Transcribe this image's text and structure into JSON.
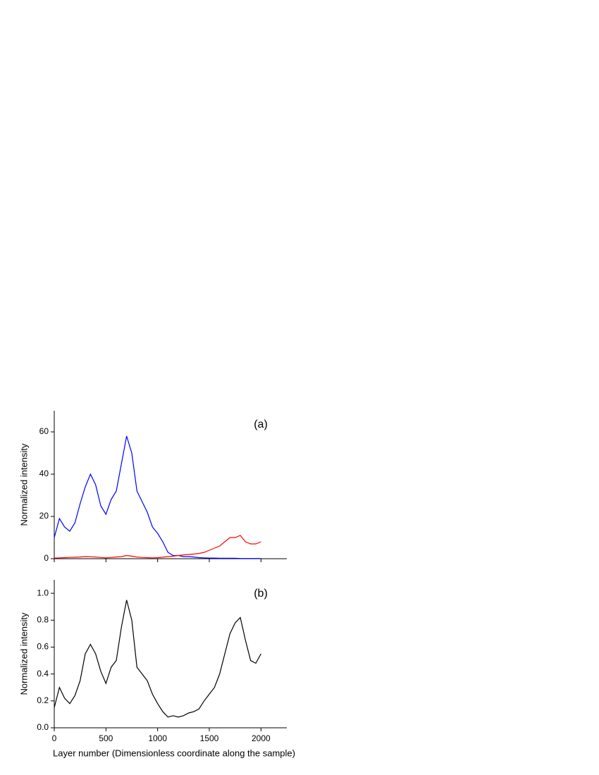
{
  "chart_data": [
    {
      "type": "line",
      "annotation": "(a)",
      "y_label": "Normalized intensity",
      "x": [
        0,
        50,
        100,
        150,
        200,
        250,
        300,
        350,
        400,
        450,
        500,
        550,
        600,
        650,
        700,
        750,
        800,
        850,
        900,
        950,
        1000,
        1050,
        1100,
        1150,
        1200,
        1250,
        1300,
        1350,
        1400,
        1450,
        1500,
        1550,
        1600,
        1650,
        1700,
        1750,
        1800,
        1850,
        1900,
        1950,
        2000
      ],
      "series": [
        {
          "color": "#0000ff",
          "values": [
            10,
            19,
            15,
            13,
            17,
            26,
            34,
            40,
            35,
            25,
            21,
            28,
            32,
            45,
            58,
            50,
            32,
            27,
            22,
            15,
            12,
            8,
            3,
            1.5,
            1.5,
            1,
            1,
            0.8,
            0.5,
            0.4,
            0.3,
            0.3,
            0.2,
            0.2,
            0.2,
            0.2,
            0.1,
            0.1,
            0.1,
            0.1,
            0.1
          ]
        },
        {
          "color": "#ff0000",
          "values": [
            0.3,
            0.4,
            0.5,
            0.6,
            0.7,
            0.8,
            1,
            0.9,
            0.8,
            0.6,
            0.4,
            0.6,
            0.8,
            1,
            1.5,
            1.2,
            0.8,
            0.6,
            0.5,
            0.4,
            0.5,
            0.7,
            1,
            1.2,
            1.5,
            1.8,
            2,
            2.2,
            2.5,
            3,
            4,
            5,
            6,
            8,
            10,
            10,
            11,
            8,
            7,
            7,
            8
          ]
        }
      ],
      "xlim": [
        0,
        2250
      ],
      "xticks": [
        0,
        500,
        1000,
        1500,
        2000
      ],
      "xtick_labels": false,
      "ylim": [
        0,
        70
      ],
      "yticks": [
        0,
        20,
        40,
        60
      ]
    },
    {
      "type": "line",
      "annotation": "(b)",
      "y_label": "Normalized intensity",
      "x_label": "Layer number (Dimensionless coordinate along the sample)",
      "x": [
        0,
        50,
        100,
        150,
        200,
        250,
        300,
        350,
        400,
        450,
        500,
        550,
        600,
        650,
        700,
        750,
        800,
        850,
        900,
        950,
        1000,
        1050,
        1100,
        1150,
        1200,
        1250,
        1300,
        1350,
        1400,
        1450,
        1500,
        1550,
        1600,
        1650,
        1700,
        1750,
        1800,
        1850,
        1900,
        1950,
        2000
      ],
      "series": [
        {
          "color": "#000000",
          "values": [
            0.15,
            0.3,
            0.22,
            0.18,
            0.24,
            0.35,
            0.55,
            0.62,
            0.55,
            0.42,
            0.33,
            0.45,
            0.5,
            0.75,
            0.95,
            0.8,
            0.45,
            0.4,
            0.35,
            0.25,
            0.18,
            0.12,
            0.08,
            0.09,
            0.08,
            0.09,
            0.11,
            0.12,
            0.14,
            0.2,
            0.25,
            0.3,
            0.4,
            0.55,
            0.7,
            0.78,
            0.82,
            0.65,
            0.5,
            0.48,
            0.55
          ]
        }
      ],
      "xlim": [
        0,
        2250
      ],
      "xticks": [
        0,
        500,
        1000,
        1500,
        2000
      ],
      "xtick_labels": true,
      "ylim": [
        0,
        1.1
      ],
      "yticks": [
        {
          "value": 0,
          "label": "0.0"
        },
        0.2,
        0.4,
        0.6,
        0.8,
        {
          "value": 1,
          "label": "1.0"
        }
      ]
    }
  ]
}
